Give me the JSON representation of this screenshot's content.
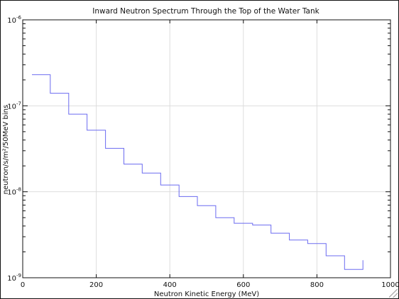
{
  "chart_data": {
    "type": "line",
    "style": "step histogram",
    "title": "Inward Neutron Spectrum Through the Top of the Water Tank",
    "xlabel": "Neutron Kinetic Energy (MeV)",
    "ylabel": "neutron/s/m²/50MeV bins",
    "xlim": [
      0,
      1000
    ],
    "ylim": [
      1e-09,
      1e-06
    ],
    "y_scale": "log",
    "grid": true,
    "x_ticks": [
      0,
      200,
      400,
      600,
      800,
      1000
    ],
    "x_tick_labels": [
      "0",
      "200",
      "400",
      "600",
      "800",
      "1000"
    ],
    "y_ticks": [
      1e-09,
      1e-08,
      1e-07,
      1e-06
    ],
    "y_tick_labels": [
      {
        "base": "10",
        "exp": "-9"
      },
      {
        "base": "10",
        "exp": "-8"
      },
      {
        "base": "10",
        "exp": "-7"
      },
      {
        "base": "10",
        "exp": "-6"
      }
    ],
    "line_color": "#6b6bf0",
    "series": [
      {
        "bin_edges": [
          25,
          75,
          125,
          175,
          225,
          275,
          325,
          375,
          425,
          475,
          525,
          575,
          625,
          675,
          725,
          775,
          825,
          875,
          925
        ],
        "values": [
          2.3e-07,
          1.4e-07,
          8e-08,
          5.2e-08,
          3.2e-08,
          2.1e-08,
          1.65e-08,
          1.2e-08,
          8.8e-09,
          6.9e-09,
          5e-09,
          4.3e-09,
          4.1e-09,
          3.3e-09,
          2.75e-09,
          2.5e-09,
          1.8e-09,
          1.25e-09
        ]
      }
    ],
    "last_bin_tick_value": 1.6e-09
  }
}
